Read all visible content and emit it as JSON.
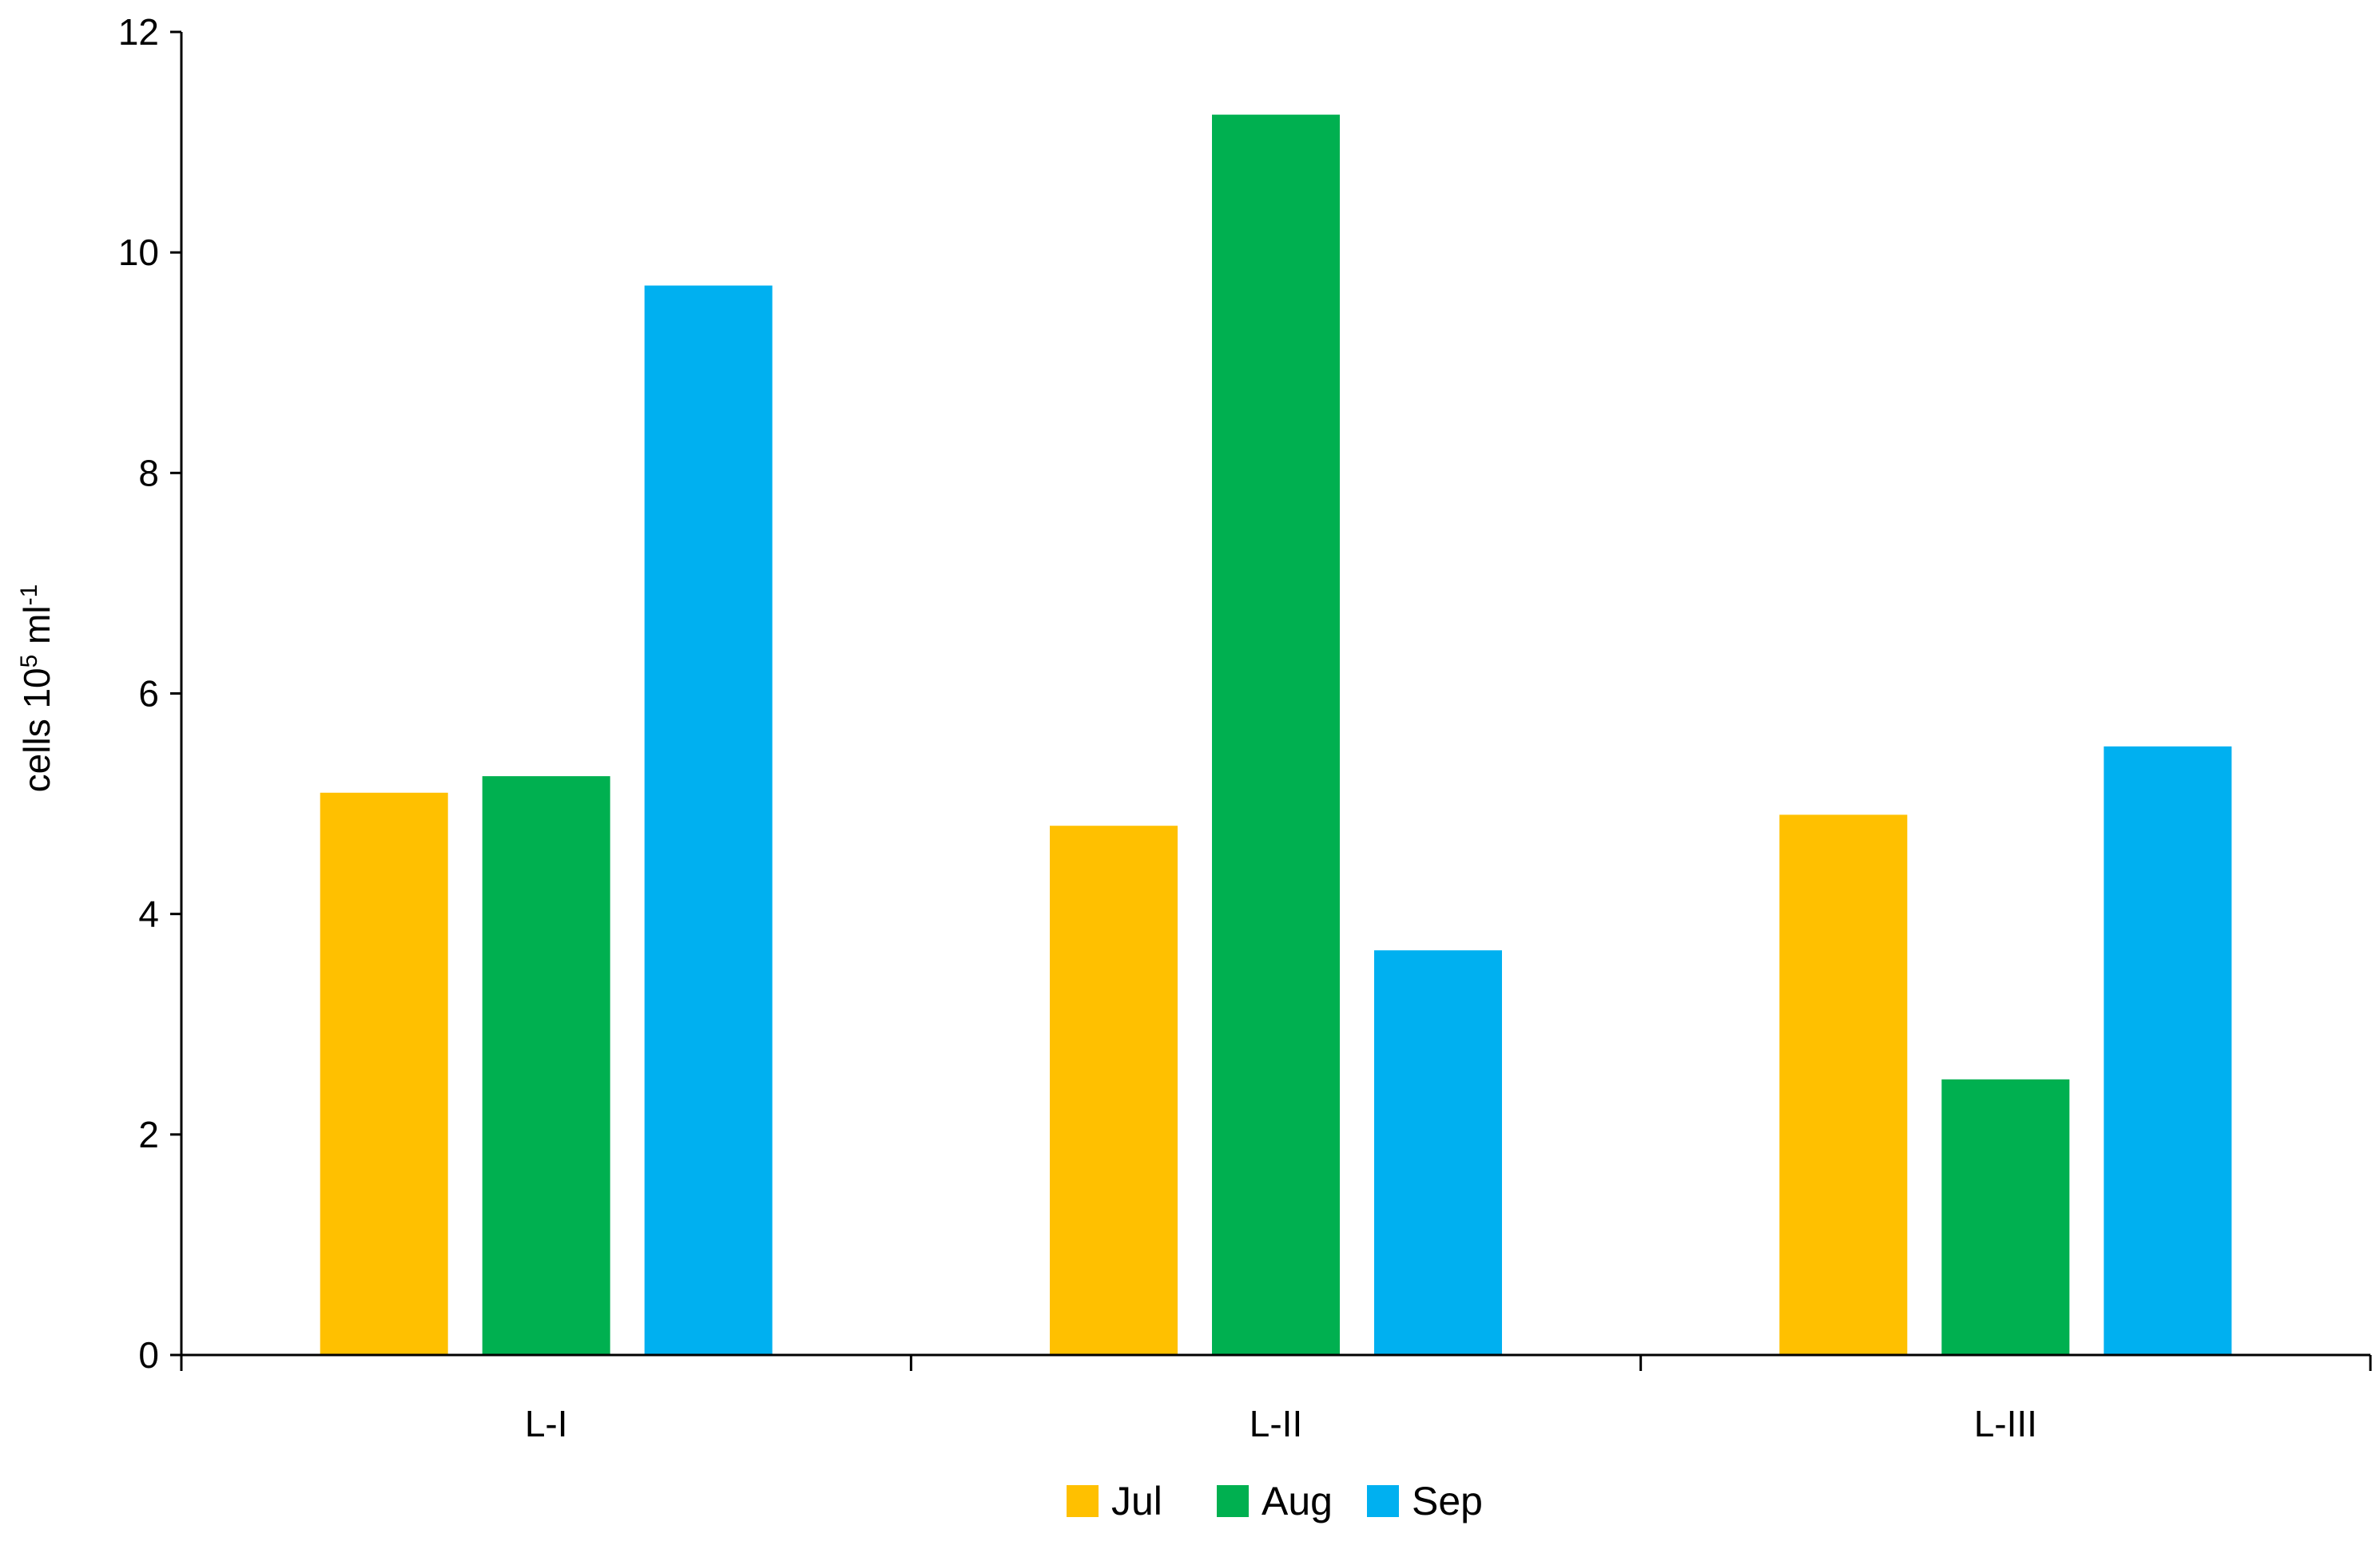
{
  "chart_data": {
    "type": "bar",
    "categories": [
      "L-I",
      "L-II",
      "L-III"
    ],
    "series": [
      {
        "name": "Jul",
        "color": "#FFC000",
        "values": [
          5.1,
          4.8,
          4.9
        ]
      },
      {
        "name": "Aug",
        "color": "#00B050",
        "values": [
          5.25,
          11.25,
          2.5
        ]
      },
      {
        "name": "Sep",
        "color": "#00B0F0",
        "values": [
          9.7,
          3.67,
          5.52
        ]
      }
    ],
    "ylabel": {
      "main": "cells 10",
      "sup1": "5",
      "mid": " ml",
      "sup2": "-1"
    },
    "ylim": [
      0,
      12
    ],
    "yticks": [
      0,
      2,
      4,
      6,
      8,
      10,
      12
    ],
    "grid": false,
    "legend_position": "bottom-center"
  }
}
